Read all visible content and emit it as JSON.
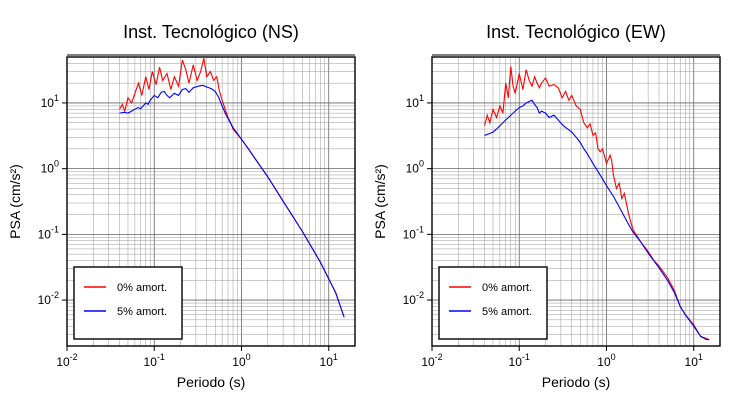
{
  "chart_data": [
    {
      "type": "line",
      "title": "Inst. Tecnológico (NS)",
      "xlabel": "Periodo (s)",
      "ylabel": "PSA (cm/s²)",
      "xscale": "log",
      "yscale": "log",
      "xlim": [
        0.01,
        20
      ],
      "ylim": [
        0.002,
        50
      ],
      "grid": true,
      "legend_position": "bottom-left",
      "x_ticks": [
        "10-2",
        "10-1",
        "100",
        "101"
      ],
      "y_ticks": [
        "10-2",
        "10-1",
        "100",
        "101"
      ],
      "series": [
        {
          "name": "0% amort.",
          "color": "#ff0000",
          "points": [
            [
              0.04,
              8
            ],
            [
              0.043,
              9.5
            ],
            [
              0.046,
              7.5
            ],
            [
              0.05,
              12
            ],
            [
              0.055,
              10
            ],
            [
              0.06,
              14
            ],
            [
              0.066,
              20
            ],
            [
              0.072,
              13
            ],
            [
              0.08,
              25
            ],
            [
              0.087,
              16
            ],
            [
              0.095,
              30
            ],
            [
              0.105,
              19
            ],
            [
              0.115,
              35
            ],
            [
              0.125,
              22
            ],
            [
              0.14,
              28
            ],
            [
              0.155,
              16
            ],
            [
              0.17,
              25
            ],
            [
              0.19,
              18
            ],
            [
              0.21,
              45
            ],
            [
              0.23,
              32
            ],
            [
              0.25,
              20
            ],
            [
              0.28,
              38
            ],
            [
              0.31,
              22
            ],
            [
              0.34,
              30
            ],
            [
              0.37,
              48
            ],
            [
              0.4,
              25
            ],
            [
              0.44,
              30
            ],
            [
              0.48,
              22
            ],
            [
              0.52,
              25
            ],
            [
              0.56,
              15
            ],
            [
              0.6,
              11
            ],
            [
              0.65,
              8
            ],
            [
              0.7,
              6
            ],
            [
              0.75,
              5
            ],
            [
              0.8,
              4
            ],
            [
              0.9,
              3.3
            ],
            [
              1,
              2.8
            ],
            [
              1.2,
              2
            ],
            [
              1.5,
              1.3
            ],
            [
              2,
              0.75
            ],
            [
              3,
              0.32
            ],
            [
              5,
              0.11
            ],
            [
              8,
              0.038
            ],
            [
              12,
              0.013
            ],
            [
              15,
              0.0055
            ]
          ]
        },
        {
          "name": "5% amort.",
          "color": "#0000ff",
          "points": [
            [
              0.04,
              7
            ],
            [
              0.045,
              7.2
            ],
            [
              0.05,
              7
            ],
            [
              0.055,
              7.5
            ],
            [
              0.06,
              8
            ],
            [
              0.065,
              8.5
            ],
            [
              0.07,
              8.2
            ],
            [
              0.08,
              10
            ],
            [
              0.085,
              9.5
            ],
            [
              0.09,
              11
            ],
            [
              0.1,
              13
            ],
            [
              0.11,
              12
            ],
            [
              0.12,
              14.5
            ],
            [
              0.13,
              15
            ],
            [
              0.14,
              13
            ],
            [
              0.15,
              12
            ],
            [
              0.17,
              14
            ],
            [
              0.19,
              13
            ],
            [
              0.21,
              16
            ],
            [
              0.23,
              16.5
            ],
            [
              0.25,
              14.5
            ],
            [
              0.28,
              17
            ],
            [
              0.32,
              18
            ],
            [
              0.36,
              18.5
            ],
            [
              0.4,
              17.5
            ],
            [
              0.45,
              16.5
            ],
            [
              0.5,
              15
            ],
            [
              0.55,
              12
            ],
            [
              0.6,
              9
            ],
            [
              0.65,
              7
            ],
            [
              0.7,
              5.8
            ],
            [
              0.8,
              4.2
            ],
            [
              0.9,
              3.4
            ],
            [
              1,
              2.8
            ],
            [
              1.2,
              2
            ],
            [
              1.5,
              1.3
            ],
            [
              2,
              0.75
            ],
            [
              3,
              0.32
            ],
            [
              5,
              0.11
            ],
            [
              8,
              0.038
            ],
            [
              12,
              0.013
            ],
            [
              15,
              0.0055
            ]
          ]
        }
      ]
    },
    {
      "type": "line",
      "title": "Inst. Tecnológico (EW)",
      "xlabel": "Periodo (s)",
      "ylabel": "PSA (cm/s²)",
      "xscale": "log",
      "yscale": "log",
      "xlim": [
        0.01,
        20
      ],
      "ylim": [
        0.002,
        50
      ],
      "grid": true,
      "legend_position": "bottom-left",
      "x_ticks": [
        "10-2",
        "10-1",
        "100",
        "101"
      ],
      "y_ticks": [
        "10-2",
        "10-1",
        "100",
        "101"
      ],
      "series": [
        {
          "name": "0% amort.",
          "color": "#ff0000",
          "points": [
            [
              0.04,
              4.5
            ],
            [
              0.043,
              6.5
            ],
            [
              0.046,
              5
            ],
            [
              0.05,
              8
            ],
            [
              0.055,
              6
            ],
            [
              0.06,
              9
            ],
            [
              0.065,
              7
            ],
            [
              0.07,
              20
            ],
            [
              0.075,
              12
            ],
            [
              0.08,
              36
            ],
            [
              0.085,
              18
            ],
            [
              0.09,
              14
            ],
            [
              0.1,
              28
            ],
            [
              0.11,
              16
            ],
            [
              0.12,
              32
            ],
            [
              0.13,
              22
            ],
            [
              0.14,
              18
            ],
            [
              0.15,
              25
            ],
            [
              0.16,
              20
            ],
            [
              0.17,
              17
            ],
            [
              0.18,
              20
            ],
            [
              0.2,
              24
            ],
            [
              0.22,
              18
            ],
            [
              0.25,
              19
            ],
            [
              0.28,
              17
            ],
            [
              0.31,
              12
            ],
            [
              0.34,
              15
            ],
            [
              0.37,
              11
            ],
            [
              0.4,
              13
            ],
            [
              0.45,
              9
            ],
            [
              0.5,
              8
            ],
            [
              0.55,
              5
            ],
            [
              0.6,
              4.2
            ],
            [
              0.65,
              4.8
            ],
            [
              0.7,
              3.2
            ],
            [
              0.75,
              3.5
            ],
            [
              0.8,
              2
            ],
            [
              0.85,
              1.8
            ],
            [
              0.9,
              2
            ],
            [
              1,
              1.2
            ],
            [
              1.1,
              1.6
            ],
            [
              1.15,
              1.3
            ],
            [
              1.2,
              0.8
            ],
            [
              1.3,
              0.5
            ],
            [
              1.4,
              0.6
            ],
            [
              1.5,
              0.35
            ],
            [
              1.6,
              0.42
            ],
            [
              1.8,
              0.2
            ],
            [
              2,
              0.12
            ],
            [
              2.5,
              0.075
            ],
            [
              3,
              0.055
            ],
            [
              3.5,
              0.04
            ],
            [
              4,
              0.033
            ],
            [
              5,
              0.022
            ],
            [
              6,
              0.014
            ],
            [
              7,
              0.008
            ],
            [
              8,
              0.006
            ],
            [
              10,
              0.0042
            ],
            [
              12,
              0.0028
            ],
            [
              14,
              0.0026
            ],
            [
              15,
              0.0025
            ]
          ]
        },
        {
          "name": "5% amort.",
          "color": "#0000ff",
          "points": [
            [
              0.04,
              3.2
            ],
            [
              0.045,
              3.4
            ],
            [
              0.05,
              3.6
            ],
            [
              0.055,
              4
            ],
            [
              0.06,
              4.5
            ],
            [
              0.07,
              5.5
            ],
            [
              0.08,
              6.5
            ],
            [
              0.09,
              7.5
            ],
            [
              0.1,
              8.5
            ],
            [
              0.11,
              9
            ],
            [
              0.12,
              10
            ],
            [
              0.13,
              10.5
            ],
            [
              0.14,
              11
            ],
            [
              0.15,
              9.5
            ],
            [
              0.16,
              8.5
            ],
            [
              0.17,
              7
            ],
            [
              0.18,
              7.5
            ],
            [
              0.2,
              7
            ],
            [
              0.22,
              6
            ],
            [
              0.25,
              6.5
            ],
            [
              0.28,
              5.5
            ],
            [
              0.32,
              4.5
            ],
            [
              0.36,
              4
            ],
            [
              0.4,
              3.6
            ],
            [
              0.45,
              3
            ],
            [
              0.5,
              2.5
            ],
            [
              0.55,
              2
            ],
            [
              0.6,
              1.7
            ],
            [
              0.7,
              1.2
            ],
            [
              0.8,
              0.9
            ],
            [
              0.9,
              0.7
            ],
            [
              1,
              0.55
            ],
            [
              1.2,
              0.38
            ],
            [
              1.5,
              0.22
            ],
            [
              1.8,
              0.14
            ],
            [
              2,
              0.11
            ],
            [
              2.5,
              0.075
            ],
            [
              3,
              0.052
            ],
            [
              4,
              0.031
            ],
            [
              5,
              0.02
            ],
            [
              6,
              0.013
            ],
            [
              7,
              0.008
            ],
            [
              8,
              0.006
            ],
            [
              10,
              0.004
            ],
            [
              12,
              0.0028
            ],
            [
              14,
              0.0025
            ],
            [
              15,
              0.0025
            ]
          ]
        }
      ]
    }
  ]
}
